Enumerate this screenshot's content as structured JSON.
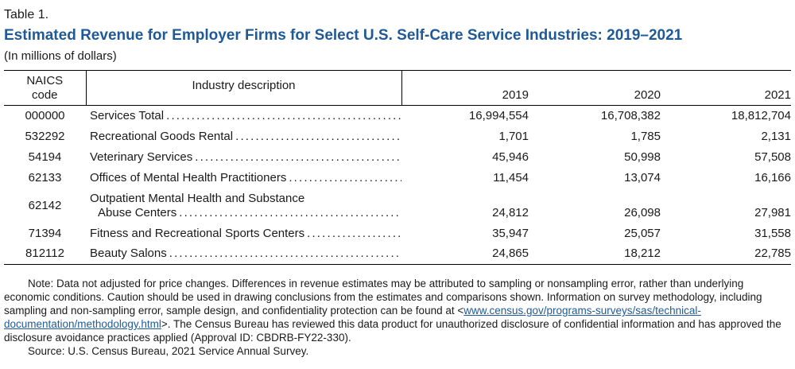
{
  "header": {
    "label": "Table 1.",
    "title": "Estimated Revenue for Employer Firms for Select U.S. Self-Care Service Industries: 2019–2021",
    "subtitle": "(In millions of dollars)"
  },
  "table": {
    "columns": [
      "NAICS code",
      "Industry description",
      "2019",
      "2020",
      "2021"
    ],
    "rows": [
      {
        "code": "000000",
        "description": [
          "Services Total"
        ],
        "values": [
          "16,994,554",
          "16,708,382",
          "18,812,704"
        ]
      },
      {
        "code": "532292",
        "description": [
          "Recreational Goods Rental"
        ],
        "values": [
          "1,701",
          "1,785",
          "2,131"
        ]
      },
      {
        "code": "54194",
        "description": [
          "Veterinary Services"
        ],
        "values": [
          "45,946",
          "50,998",
          "57,508"
        ]
      },
      {
        "code": "62133",
        "description": [
          "Offices of Mental Health Practitioners"
        ],
        "values": [
          "11,454",
          "13,074",
          "16,166"
        ]
      },
      {
        "code": "62142",
        "description": [
          "Outpatient Mental Health and Substance",
          "Abuse Centers"
        ],
        "values": [
          "24,812",
          "26,098",
          "27,981"
        ]
      },
      {
        "code": "71394",
        "description": [
          "Fitness and Recreational Sports Centers"
        ],
        "values": [
          "35,947",
          "25,057",
          "31,558"
        ]
      },
      {
        "code": "812112",
        "description": [
          "Beauty Salons"
        ],
        "values": [
          "24,865",
          "18,212",
          "22,785"
        ]
      }
    ]
  },
  "notes": {
    "note": "Note: Data not adjusted for price changes. Differences in revenue estimates may be attributed to sampling or nonsampling error, rather than underlying economic conditions. Caution should be used in drawing conclusions from the estimates and comparisons shown. Information on survey methodology, including sampling and non-sampling error,  sample design, and confidentiality protection can be found at <",
    "link": "www.census.gov/programs-surveys/sas/technical-documentation/methodology.html",
    "note_end": ">. The Census Bureau has reviewed this data product for unauthorized disclosure of confidential information and has approved the disclosure avoidance practices applied (Approval ID: CBDRB-FY22-330).",
    "source": "Source: U.S. Census Bureau, 2021 Service Annual Survey."
  }
}
